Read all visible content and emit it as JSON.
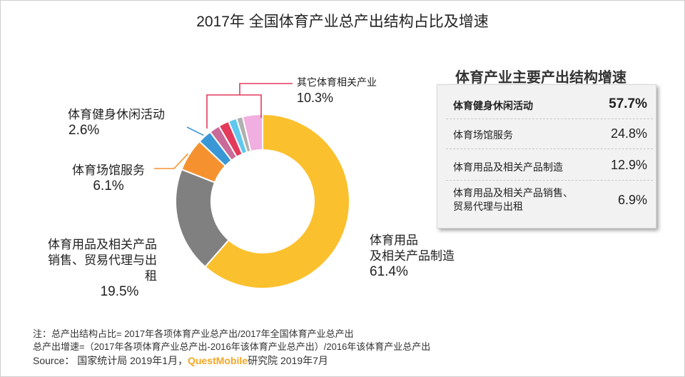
{
  "title": "2017年 全国体育产业总产出结构占比及增速",
  "chart_data": [
    {
      "type": "pie",
      "title": "2017年 全国体育产业总产出结构占比及增速",
      "unit": "%",
      "slices": [
        {
          "label": "体育用品\n及相关产品制造",
          "value": 61.4,
          "value_label": "61.4%",
          "color": "#fbc02d"
        },
        {
          "label": "体育用品及相关产品\n销售、贸易代理与出租",
          "value": 19.5,
          "value_label": "19.5%",
          "color": "#808080"
        },
        {
          "label": "体育场馆服务",
          "value": 6.1,
          "value_label": "6.1%",
          "color": "#f5922f"
        },
        {
          "label": "体育健身休闲活动",
          "value": 2.6,
          "value_label": "2.6%",
          "color": "#3a97d6"
        },
        {
          "label": "其它体育相关产业",
          "value": 10.3,
          "value_label": "10.3%",
          "color": "#e88fcf",
          "sub_colors": [
            "#c96a9a",
            "#e33a5b",
            "#5ec8ee",
            "#b0b0b0",
            "#f1aee0"
          ]
        }
      ]
    },
    {
      "type": "table",
      "title": "体育产业主要产出结构增速",
      "rows": [
        {
          "name": "体育健身休闲活动",
          "value": "57.7%",
          "bold": true
        },
        {
          "name": "体育场馆服务",
          "value": "24.8%",
          "bold": false
        },
        {
          "name": "体育用品及相关产品制造",
          "value": "12.9%",
          "bold": false
        },
        {
          "name": "体育用品及相关产品销售、\n贸易代理与出租",
          "value": "6.9%",
          "bold": false
        }
      ]
    }
  ],
  "notes": [
    "注：总产出结构占比= 2017年各项体育产业总产出/2017年全国体育产业总产出",
    "总产出增速=（2017年各项体育产业总产出-2016年该体育产业总产出）/2016年该体育产业总产出"
  ],
  "source": {
    "prefix": "Source： 国家统计局 2019年1月，",
    "brand": "QuestMobile",
    "suffix": "研究院 2019年7月"
  }
}
